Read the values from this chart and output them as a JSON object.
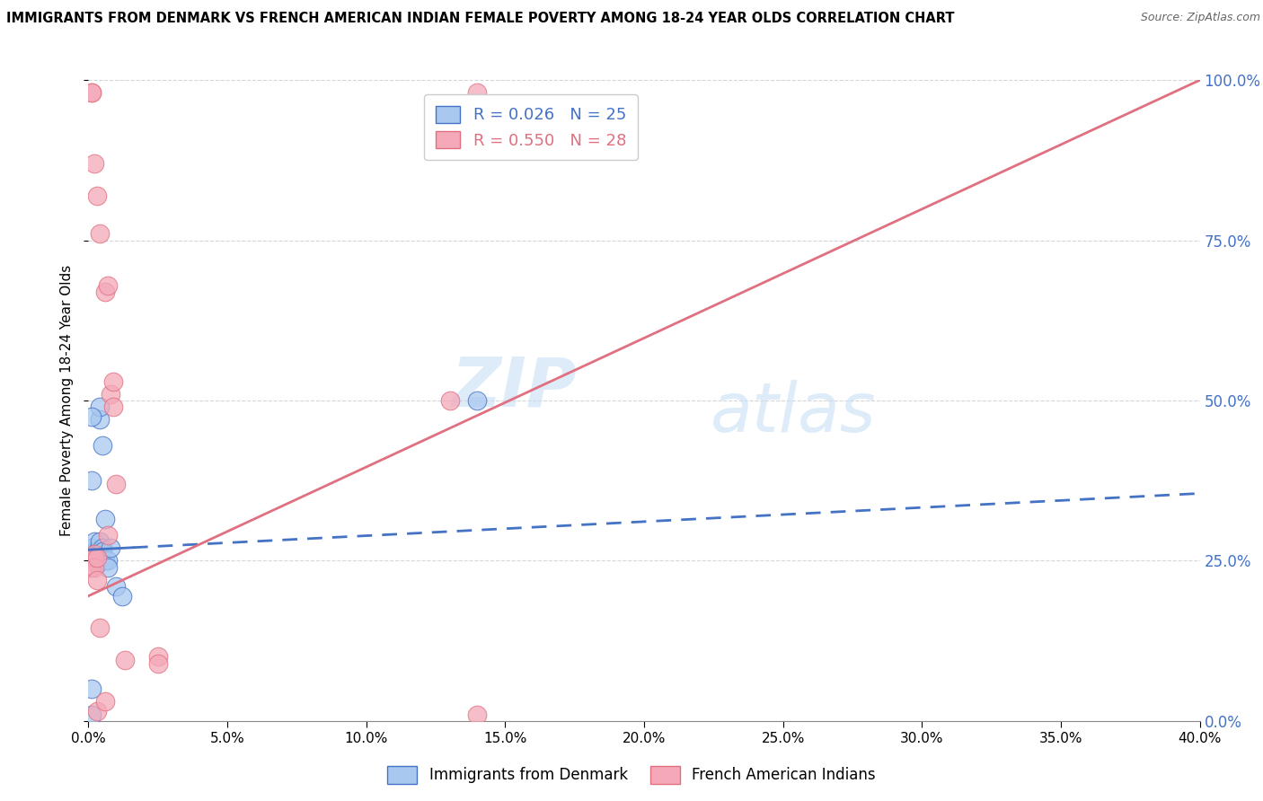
{
  "title": "IMMIGRANTS FROM DENMARK VS FRENCH AMERICAN INDIAN FEMALE POVERTY AMONG 18-24 YEAR OLDS CORRELATION CHART",
  "source": "Source: ZipAtlas.com",
  "ylabel": "Female Poverty Among 18-24 Year Olds",
  "xlim": [
    0,
    0.4
  ],
  "ylim": [
    0,
    1.0
  ],
  "legend1_label": "Immigrants from Denmark",
  "legend2_label": "French American Indians",
  "R1": 0.026,
  "N1": 25,
  "R2": 0.55,
  "N2": 28,
  "color_blue": "#A8C8F0",
  "color_pink": "#F4A8B8",
  "line_blue": "#4472C4",
  "line_pink": "#E07080",
  "watermark_zip": "ZIP",
  "watermark_atlas": "atlas",
  "blue_scatter_x": [
    0.001,
    0.001,
    0.001,
    0.001,
    0.002,
    0.002,
    0.003,
    0.003,
    0.003,
    0.003,
    0.004,
    0.004,
    0.004,
    0.005,
    0.005,
    0.005,
    0.006,
    0.006,
    0.007,
    0.007,
    0.008,
    0.01,
    0.012,
    0.14,
    0.001
  ],
  "blue_scatter_y": [
    0.01,
    0.05,
    0.27,
    0.375,
    0.265,
    0.28,
    0.265,
    0.26,
    0.255,
    0.245,
    0.47,
    0.49,
    0.28,
    0.43,
    0.27,
    0.265,
    0.315,
    0.25,
    0.25,
    0.24,
    0.27,
    0.21,
    0.195,
    0.5,
    0.475
  ],
  "pink_scatter_x": [
    0.001,
    0.001,
    0.001,
    0.001,
    0.002,
    0.002,
    0.002,
    0.002,
    0.003,
    0.003,
    0.003,
    0.003,
    0.004,
    0.004,
    0.006,
    0.006,
    0.007,
    0.007,
    0.008,
    0.009,
    0.009,
    0.01,
    0.013,
    0.025,
    0.025,
    0.13,
    0.14,
    0.14
  ],
  "pink_scatter_y": [
    0.98,
    0.98,
    0.25,
    0.24,
    0.87,
    0.26,
    0.255,
    0.24,
    0.82,
    0.255,
    0.22,
    0.015,
    0.76,
    0.145,
    0.67,
    0.03,
    0.68,
    0.29,
    0.51,
    0.53,
    0.49,
    0.37,
    0.095,
    0.1,
    0.09,
    0.5,
    0.98,
    0.01
  ],
  "blue_trend_x0": 0.0,
  "blue_trend_x1": 0.4,
  "blue_trend_y0": 0.267,
  "blue_trend_y1_solid": 0.27,
  "blue_trend_solid_end_x": 0.016,
  "blue_trend_y1_dash": 0.355,
  "pink_trend_x0": 0.0,
  "pink_trend_x1": 0.4,
  "pink_trend_y0": 0.195,
  "pink_trend_y1": 1.0,
  "grid_color": "#CCCCCC",
  "bg_color": "#FFFFFF"
}
